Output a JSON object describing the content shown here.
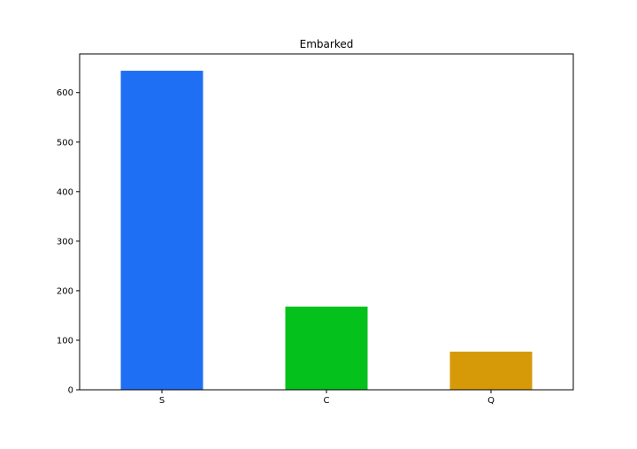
{
  "chart_data": {
    "type": "bar",
    "title": "Embarked",
    "xlabel": "",
    "ylabel": "",
    "categories": [
      "S",
      "C",
      "Q"
    ],
    "values": [
      644,
      168,
      77
    ],
    "colors": [
      "#1f6ff5",
      "#05c11c",
      "#d69a08"
    ],
    "ylim": [
      0,
      678
    ],
    "yticks": [
      0,
      100,
      200,
      300,
      400,
      500,
      600
    ],
    "grid": false,
    "legend": "none"
  }
}
